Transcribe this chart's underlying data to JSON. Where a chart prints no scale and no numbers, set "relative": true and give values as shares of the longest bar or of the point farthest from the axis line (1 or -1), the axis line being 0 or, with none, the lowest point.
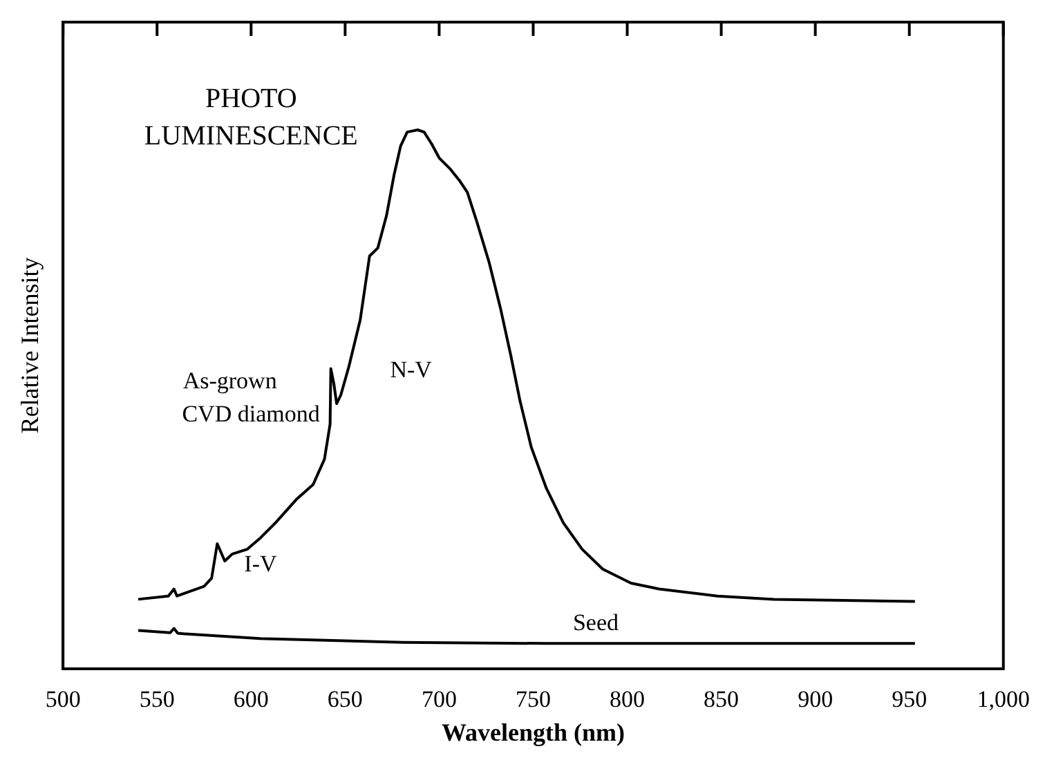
{
  "chart_data": {
    "type": "line",
    "relative": true,
    "xlabel": "Wavelength (nm)",
    "ylabel": "Relative Intensity",
    "xlim": [
      500,
      1000
    ],
    "xticks": [
      500,
      550,
      600,
      650,
      700,
      750,
      800,
      850,
      900,
      950,
      {
        "value": 1000,
        "label": "1,000"
      }
    ],
    "legend": false,
    "grid": false,
    "marker": "none",
    "line_style": "solid",
    "annotations": [
      "PHOTO LUMINESCENCE",
      "I-V",
      "N-V"
    ],
    "series": [
      {
        "name": "As-grown CVD diamond",
        "color": "#000000",
        "x": [
          540,
          556,
          559,
          560.6,
          575,
          579,
          582,
          586,
          590,
          598,
          605,
          613,
          624,
          633,
          639,
          642,
          642.4,
          644,
          645.5,
          647.7,
          652,
          658,
          663,
          667.4,
          672,
          676,
          679.5,
          683,
          688.6,
          692,
          696,
          700,
          706,
          711,
          715,
          720,
          726.5,
          732.6,
          738,
          743,
          749,
          757,
          766,
          776,
          787,
          802,
          817,
          848,
          878,
          953
        ],
        "values": [
          0.129,
          0.135,
          0.148,
          0.135,
          0.153,
          0.168,
          0.232,
          0.2,
          0.213,
          0.222,
          0.243,
          0.271,
          0.314,
          0.342,
          0.389,
          0.454,
          0.557,
          0.529,
          0.492,
          0.508,
          0.561,
          0.647,
          0.766,
          0.781,
          0.841,
          0.916,
          0.97,
          0.996,
          1.0,
          0.996,
          0.974,
          0.948,
          0.927,
          0.905,
          0.884,
          0.83,
          0.755,
          0.669,
          0.583,
          0.497,
          0.411,
          0.335,
          0.271,
          0.222,
          0.185,
          0.159,
          0.148,
          0.135,
          0.129,
          0.125
        ]
      },
      {
        "name": "Seed",
        "color": "#000000",
        "x": [
          540,
          557,
          559,
          561,
          564,
          605,
          681,
          757,
          953
        ],
        "values": [
          0.071,
          0.067,
          0.075,
          0.066,
          0.065,
          0.056,
          0.049,
          0.047,
          0.047
        ]
      }
    ]
  }
}
